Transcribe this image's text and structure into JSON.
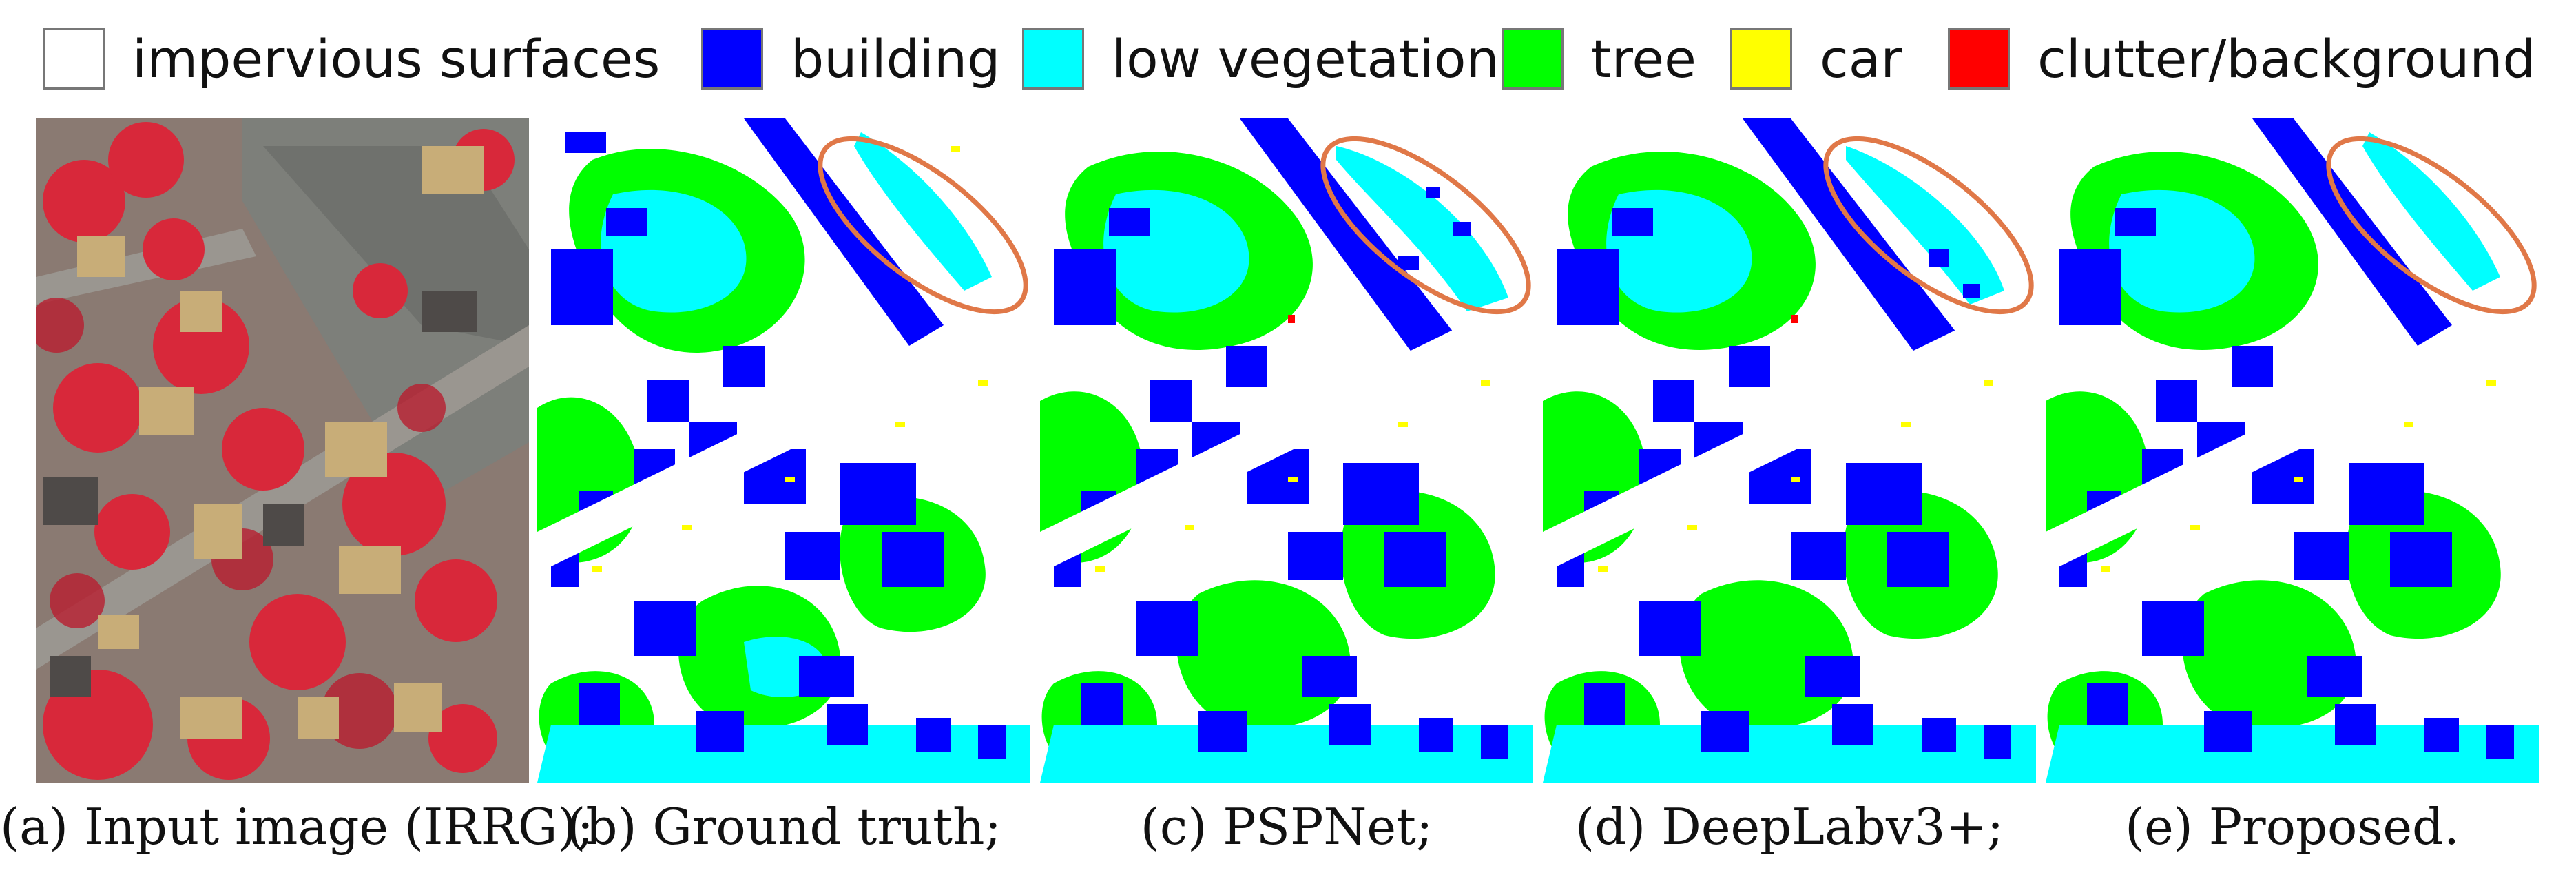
{
  "legend": [
    {
      "label": "impervious surfaces",
      "color": "#ffffff"
    },
    {
      "label": "building",
      "color": "#0000ff"
    },
    {
      "label": "low vegetation",
      "color": "#00ffff"
    },
    {
      "label": "tree",
      "color": "#00ff00"
    },
    {
      "label": "car",
      "color": "#ffff00"
    },
    {
      "label": "clutter/background",
      "color": "#ff0000"
    }
  ],
  "captions": [
    "(a) Input image (IRRG);",
    "(b) Ground truth;",
    "(c) PSPNet;",
    "(d) DeepLabv3+;",
    "(e) Proposed."
  ],
  "highlight_color": "#e07848"
}
